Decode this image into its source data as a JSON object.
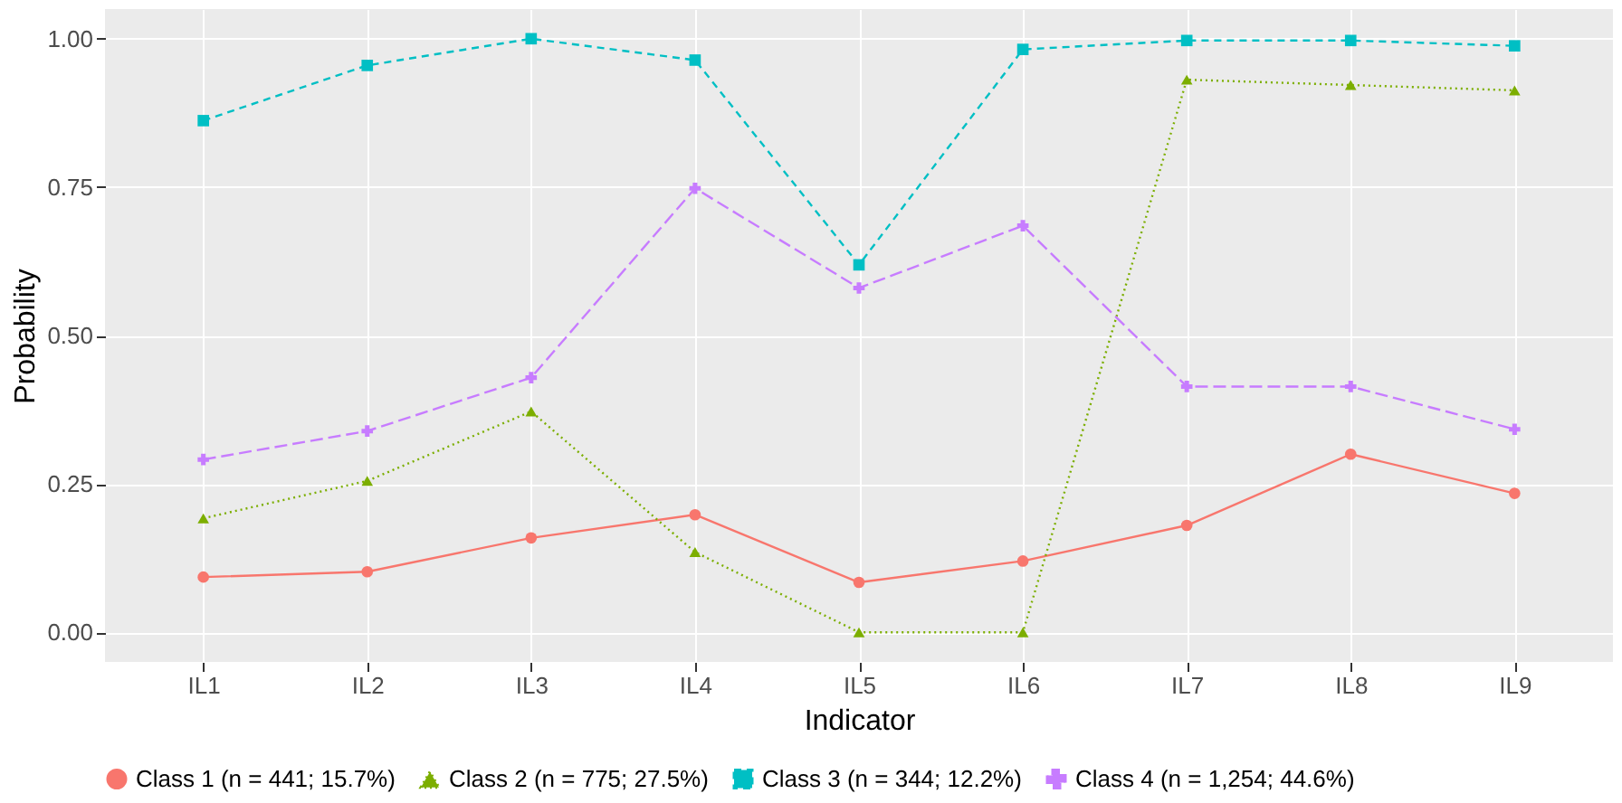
{
  "chart_data": {
    "type": "line",
    "xlabel": "Indicator",
    "ylabel": "Probability",
    "categories": [
      "IL1",
      "IL2",
      "IL3",
      "IL4",
      "IL5",
      "IL6",
      "IL7",
      "IL8",
      "IL9"
    ],
    "ylim": [
      -0.05,
      1.05
    ],
    "yticks": [
      {
        "value": 0,
        "label": "0.00"
      },
      {
        "value": 0.25,
        "label": "0.25"
      },
      {
        "value": 0.5,
        "label": "0.50"
      },
      {
        "value": 0.75,
        "label": "0.75"
      },
      {
        "value": 1,
        "label": "1.00"
      }
    ],
    "grid": true,
    "legend": "bottom",
    "series": [
      {
        "name": "Class 1 (n = 441; 15.7%)",
        "color": "#f8766d",
        "marker": "circle",
        "line_style": "solid",
        "values": [
          0.093,
          0.102,
          0.159,
          0.198,
          0.084,
          0.12,
          0.18,
          0.3,
          0.234
        ]
      },
      {
        "name": "Class 2 (n = 775; 27.5%)",
        "color": "#7cae00",
        "marker": "triangle",
        "line_style": "dotted",
        "values": [
          0.192,
          0.255,
          0.372,
          0.135,
          0.0,
          0.0,
          0.931,
          0.922,
          0.913
        ]
      },
      {
        "name": "Class 3 (n = 344; 12.2%)",
        "color": "#00bfc4",
        "marker": "square",
        "line_style": "dashed",
        "values": [
          0.862,
          0.955,
          1.0,
          0.964,
          0.619,
          0.982,
          0.997,
          0.997,
          0.988
        ]
      },
      {
        "name": "Class 4 (n = 1,254; 44.6%)",
        "color": "#c77cff",
        "marker": "cross",
        "line_style": "dashed",
        "values": [
          0.291,
          0.339,
          0.429,
          0.748,
          0.58,
          0.685,
          0.414,
          0.414,
          0.342
        ]
      }
    ]
  }
}
